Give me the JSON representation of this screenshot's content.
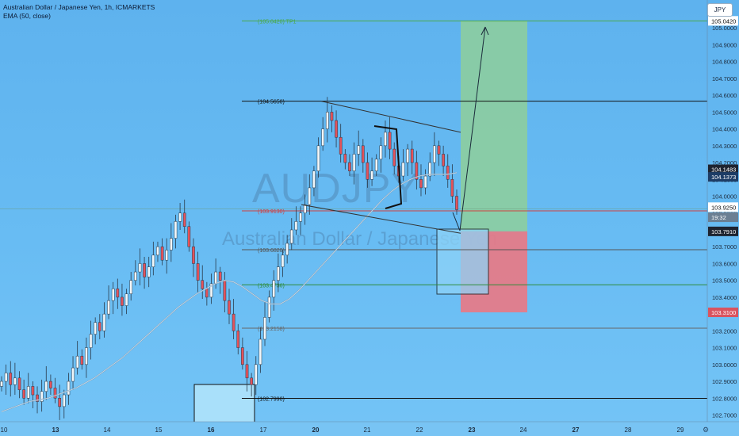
{
  "header": {
    "symbol_line": "Australian Dollar / Japanese Yen, 1h, ICMARKETS",
    "indicator_line": "EMA (50, close)",
    "currency": "JPY"
  },
  "watermark": {
    "ticker": "AUDJPY",
    "name": "Australian Dollar / Japanese Yen"
  },
  "chart_data": {
    "type": "candlestick",
    "title": "Australian Dollar / Japanese Yen, 1h, ICMARKETS",
    "indicator": "EMA (50, close)",
    "ylim": [
      102.66,
      105.1
    ],
    "x_ticks": [
      "10",
      "13",
      "14",
      "15",
      "16",
      "17",
      "20",
      "21",
      "22",
      "23",
      "24",
      "27",
      "28",
      "29"
    ],
    "x_tick_bold": [
      "13",
      "16",
      "20",
      "23",
      "27"
    ],
    "y_ticks": [
      "105.0000",
      "104.9000",
      "104.8000",
      "104.7000",
      "104.6000",
      "104.5000",
      "104.4000",
      "104.3000",
      "104.2000",
      "104.1000",
      "104.0000",
      "103.9000",
      "103.8000",
      "103.7000",
      "103.6000",
      "103.5000",
      "103.4000",
      "103.3000",
      "103.2000",
      "103.1000",
      "103.0000",
      "102.9000",
      "102.8000",
      "102.7000"
    ],
    "closes": [
      102.9,
      102.95,
      102.88,
      102.92,
      102.85,
      102.8,
      102.87,
      102.82,
      102.78,
      102.84,
      102.9,
      102.86,
      102.8,
      102.75,
      102.82,
      102.9,
      102.98,
      103.05,
      103.0,
      103.1,
      103.18,
      103.25,
      103.2,
      103.3,
      103.38,
      103.45,
      103.4,
      103.35,
      103.42,
      103.5,
      103.55,
      103.6,
      103.52,
      103.58,
      103.65,
      103.7,
      103.62,
      103.68,
      103.75,
      103.85,
      103.9,
      103.82,
      103.7,
      103.6,
      103.5,
      103.45,
      103.4,
      103.48,
      103.55,
      103.5,
      103.38,
      103.3,
      103.2,
      103.1,
      103.0,
      102.92,
      102.88,
      103.0,
      103.15,
      103.28,
      103.4,
      103.5,
      103.58,
      103.65,
      103.72,
      103.8,
      103.85,
      103.9,
      103.95,
      104.05,
      104.15,
      104.3,
      104.4,
      104.5,
      104.45,
      104.35,
      104.25,
      104.2,
      104.15,
      104.25,
      104.3,
      104.2,
      104.1,
      104.15,
      104.22,
      104.3,
      104.38,
      104.28,
      104.18,
      104.12,
      104.2,
      104.28,
      104.2,
      104.1,
      104.05,
      104.12,
      104.2,
      104.3,
      104.25,
      104.18,
      104.1,
      104.0,
      103.92
    ],
    "ema_50": [
      102.72,
      102.74,
      102.76,
      102.78,
      102.79,
      102.8,
      102.82,
      102.84,
      102.86,
      102.89,
      102.92,
      102.96,
      103.0,
      103.04,
      103.09,
      103.14,
      103.19,
      103.24,
      103.29,
      103.34,
      103.38,
      103.42,
      103.45,
      103.48,
      103.5,
      103.49,
      103.46,
      103.42,
      103.38,
      103.36,
      103.36,
      103.39,
      103.44,
      103.5,
      103.56,
      103.62,
      103.68,
      103.74,
      103.8,
      103.86,
      103.92,
      103.98,
      104.03,
      104.07,
      104.1,
      104.12,
      104.13,
      104.13,
      104.13,
      104.14
    ],
    "last_close": 103.925,
    "price_tags": [
      {
        "value": "105.0420",
        "style": "white"
      },
      {
        "value": "104.1483",
        "style": "dark"
      },
      {
        "value": "104.1373",
        "style": "dark-blue"
      },
      {
        "value": "103.9250",
        "style": "white"
      },
      {
        "value": "19:32",
        "style": "grey"
      },
      {
        "value": "103.7910",
        "style": "dark"
      },
      {
        "value": "103.3100",
        "style": "red"
      }
    ],
    "levels": [
      {
        "label": "(105.0420) TP1",
        "value": 105.042,
        "color": "#4aa84a"
      },
      {
        "label": "(104.5650)",
        "value": 104.565,
        "color": "#111111"
      },
      {
        "label": "(103.9130)",
        "value": 103.913,
        "color": "#d04040"
      },
      {
        "label": "(103.6820)",
        "value": 103.682,
        "color": "#555555"
      },
      {
        "label": "(103.4736)",
        "value": 103.4736,
        "color": "#2e8b3a"
      },
      {
        "label": "(103.2158)",
        "value": 103.2158,
        "color": "#666666"
      },
      {
        "label": "(102.7990)",
        "value": 102.799,
        "color": "#111111"
      }
    ],
    "position": {
      "side": "long",
      "entry": 103.791,
      "target": 105.042,
      "stop": 103.31
    }
  }
}
